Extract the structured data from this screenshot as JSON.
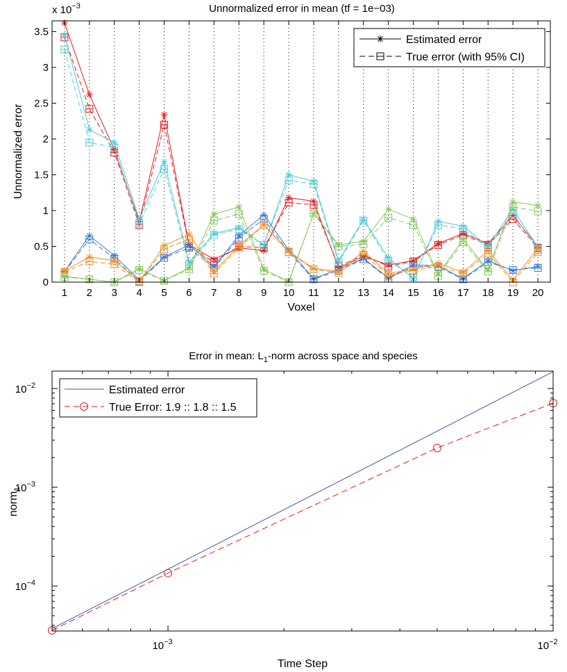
{
  "chart_data": [
    {
      "type": "line",
      "title": "Unnormalized error in mean (tf = 1e−03)",
      "xlabel": "Voxel",
      "ylabel": "Unnormalized error",
      "y_exponent_label": "x 10",
      "y_exponent": "−3",
      "x": [
        1,
        2,
        3,
        4,
        5,
        6,
        7,
        8,
        9,
        10,
        11,
        12,
        13,
        14,
        15,
        16,
        17,
        18,
        19,
        20
      ],
      "xlim": [
        0.5,
        20.5
      ],
      "ylim": [
        0,
        3.65
      ],
      "yticks": [
        0,
        0.5,
        1,
        1.5,
        2,
        2.5,
        3,
        3.5
      ],
      "ytick_labels": [
        "0",
        "0.5",
        "1",
        "1.5",
        "2",
        "2.5",
        "3",
        "3.5"
      ],
      "xtick_labels": [
        "1",
        "2",
        "3",
        "4",
        "5",
        "6",
        "7",
        "8",
        "9",
        "10",
        "11",
        "12",
        "13",
        "14",
        "15",
        "16",
        "17",
        "18",
        "19",
        "20"
      ],
      "grid": "vertical-dotted",
      "legend_position": "top-right",
      "legend": [
        {
          "label": "Estimated error",
          "style": "solid",
          "marker": "star"
        },
        {
          "label": "True error (with 95% CI)",
          "style": "dashed",
          "marker": "square"
        }
      ],
      "series": [
        {
          "color": "#e41a1c",
          "estimated": [
            3.62,
            2.62,
            1.85,
            0.85,
            2.34,
            0.52,
            0.32,
            0.48,
            0.44,
            1.18,
            1.13,
            0.2,
            0.36,
            0.24,
            0.3,
            0.54,
            0.68,
            0.54,
            0.93,
            0.5
          ],
          "true": [
            3.42,
            2.42,
            1.81,
            0.8,
            2.2,
            0.5,
            0.28,
            0.5,
            0.48,
            1.11,
            1.08,
            0.22,
            0.38,
            0.22,
            0.29,
            0.52,
            0.66,
            0.52,
            0.88,
            0.48
          ]
        },
        {
          "color": "#4ecad6",
          "estimated": [
            3.45,
            2.13,
            1.95,
            0.88,
            1.68,
            0.28,
            0.68,
            0.76,
            0.52,
            1.5,
            1.41,
            0.3,
            0.88,
            0.34,
            0.05,
            0.85,
            0.78,
            0.5,
            1.02,
            0.49
          ],
          "true": [
            3.25,
            1.95,
            1.88,
            0.82,
            1.58,
            0.25,
            0.66,
            0.74,
            0.52,
            1.42,
            1.37,
            0.28,
            0.86,
            0.3,
            0.07,
            0.8,
            0.74,
            0.48,
            0.96,
            0.45
          ]
        },
        {
          "color": "#3a78c9",
          "estimated": [
            0.15,
            0.65,
            0.37,
            0.03,
            0.35,
            0.52,
            0.22,
            0.65,
            0.94,
            0.45,
            0.05,
            0.18,
            0.33,
            0.06,
            0.24,
            0.23,
            0.05,
            0.3,
            0.16,
            0.22
          ],
          "true": [
            0.14,
            0.6,
            0.33,
            0.01,
            0.34,
            0.48,
            0.2,
            0.62,
            0.88,
            0.42,
            0.04,
            0.16,
            0.32,
            0.05,
            0.22,
            0.21,
            0.04,
            0.28,
            0.17,
            0.2
          ]
        },
        {
          "color": "#f58b1f",
          "estimated": [
            0.16,
            0.35,
            0.3,
            0.01,
            0.51,
            0.67,
            0.15,
            0.51,
            0.8,
            0.43,
            0.19,
            0.15,
            0.43,
            0.12,
            0.18,
            0.26,
            0.14,
            0.44,
            0.03,
            0.47
          ],
          "true": [
            0.14,
            0.29,
            0.25,
            0.0,
            0.46,
            0.6,
            0.12,
            0.48,
            0.8,
            0.42,
            0.18,
            0.13,
            0.38,
            0.1,
            0.16,
            0.22,
            0.12,
            0.4,
            0.0,
            0.42
          ]
        },
        {
          "color": "#86c45a",
          "estimated": [
            0.08,
            0.04,
            0.0,
            0.19,
            0.02,
            0.2,
            0.95,
            1.05,
            0.18,
            0.01,
            0.96,
            0.52,
            0.57,
            1.02,
            0.88,
            0.11,
            0.6,
            0.17,
            1.12,
            1.07
          ],
          "true": [
            0.07,
            0.04,
            0.0,
            0.17,
            0.02,
            0.18,
            0.86,
            0.95,
            0.16,
            0.0,
            0.96,
            0.5,
            0.53,
            0.9,
            0.8,
            0.09,
            0.56,
            0.15,
            1.05,
            0.99
          ]
        }
      ]
    },
    {
      "type": "line",
      "title_prefix": "Error in mean:  L",
      "title_sub": "1",
      "title_suffix": "-norm across space and species",
      "xlabel": "Time Step",
      "ylabel_main": "norm",
      "ylabel_sub": "1",
      "xscale": "log",
      "yscale": "log",
      "xlim": [
        0.0005,
        0.01
      ],
      "ylim": [
        3.5e-05,
        0.015
      ],
      "xticks": [
        0.001,
        0.01
      ],
      "xtick_base": [
        "10",
        "10"
      ],
      "xtick_exp": [
        "−3",
        "−2"
      ],
      "yticks": [
        0.0001,
        0.001,
        0.01
      ],
      "ytick_base": [
        "10",
        "10",
        "10"
      ],
      "ytick_exp": [
        "−4",
        "−3",
        "−2"
      ],
      "legend_position": "top-left",
      "legend": [
        {
          "label": "Estimated error",
          "style": "solid",
          "color": "#3a5ba8"
        },
        {
          "label": "True Error: 1.9 :: 1.8 :: 1.5",
          "style": "dashed",
          "color": "#e41a1c",
          "marker": "circle"
        }
      ],
      "series": [
        {
          "name": "Estimated error",
          "color": "#3a5ba8",
          "x": [
            0.0005,
            0.01
          ],
          "y": [
            3.7e-05,
            0.0148
          ]
        },
        {
          "name": "True Error: 1.9 :: 1.8 :: 1.5",
          "color": "#e41a1c",
          "x": [
            0.0005,
            0.001,
            0.005,
            0.01
          ],
          "y": [
            3.55e-05,
            0.000135,
            0.0025,
            0.0071
          ]
        }
      ]
    }
  ]
}
